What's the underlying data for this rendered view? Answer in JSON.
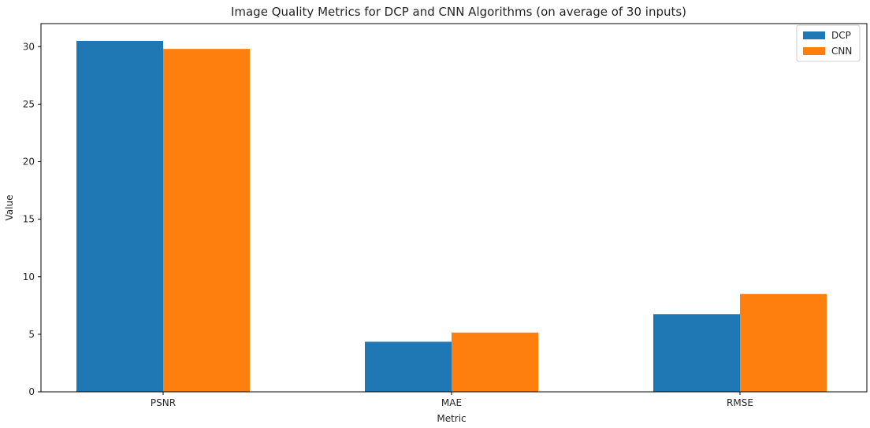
{
  "chart_data": {
    "type": "bar",
    "title": "Image Quality Metrics for DCP and CNN Algorithms (on average of 30 inputs)",
    "xlabel": "Metric",
    "ylabel": "Value",
    "categories": [
      "PSNR",
      "MAE",
      "RMSE"
    ],
    "series": [
      {
        "name": "DCP",
        "color": "#1f77b4",
        "values": [
          30.5,
          4.35,
          6.75
        ]
      },
      {
        "name": "CNN",
        "color": "#ff7f0e",
        "values": [
          29.8,
          5.15,
          8.5
        ]
      }
    ],
    "ylim": [
      0,
      32
    ],
    "yticks": [
      0,
      5,
      10,
      15,
      20,
      25,
      30
    ],
    "grid": false,
    "legend": "top-right"
  }
}
